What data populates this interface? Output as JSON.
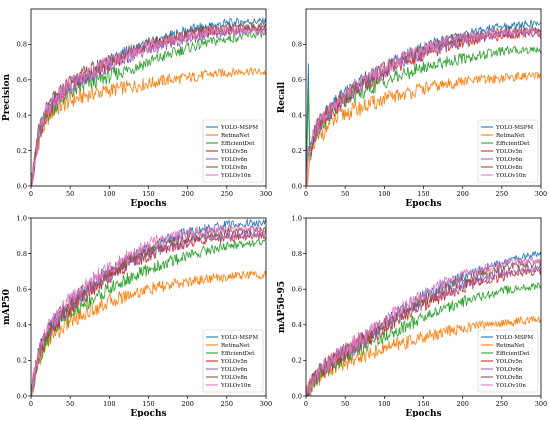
{
  "colors": {
    "YOLO-MSPM": "#1f77b4",
    "RetinaNet": "#ff7f0e",
    "EfficientDet": "#2ca02c",
    "YOLOv5n": "#d62728",
    "YOLOv6n": "#9467bd",
    "YOLOv8n": "#8c564b",
    "YOLOv10n": "#e377c2"
  },
  "chart_data": [
    {
      "type": "line",
      "xlabel": "Epochs",
      "ylabel": "Precision",
      "xlim": [
        0,
        300
      ],
      "ylim": [
        0,
        1.0
      ],
      "xticks": [
        0,
        50,
        100,
        150,
        200,
        250,
        300
      ],
      "yticks": [
        0.0,
        0.2,
        0.4,
        0.6,
        0.8
      ],
      "grid": false,
      "legend_position": "lower-right",
      "x": [
        0,
        5,
        10,
        20,
        30,
        50,
        75,
        100,
        125,
        150,
        175,
        200,
        225,
        250,
        275,
        300
      ],
      "series": [
        {
          "name": "YOLO-MSPM",
          "values": [
            0.0,
            0.15,
            0.3,
            0.42,
            0.48,
            0.58,
            0.64,
            0.7,
            0.76,
            0.8,
            0.84,
            0.88,
            0.9,
            0.92,
            0.93,
            0.93
          ]
        },
        {
          "name": "RetinaNet",
          "values": [
            0.0,
            0.12,
            0.25,
            0.38,
            0.43,
            0.48,
            0.52,
            0.54,
            0.56,
            0.58,
            0.6,
            0.61,
            0.63,
            0.64,
            0.65,
            0.64
          ]
        },
        {
          "name": "EfficientDet",
          "values": [
            0.0,
            0.14,
            0.28,
            0.4,
            0.45,
            0.53,
            0.58,
            0.62,
            0.66,
            0.7,
            0.74,
            0.78,
            0.81,
            0.83,
            0.85,
            0.86
          ]
        },
        {
          "name": "YOLOv5n",
          "values": [
            0.0,
            0.15,
            0.3,
            0.41,
            0.47,
            0.57,
            0.63,
            0.69,
            0.74,
            0.78,
            0.82,
            0.85,
            0.87,
            0.88,
            0.89,
            0.89
          ]
        },
        {
          "name": "YOLOv6n",
          "values": [
            0.0,
            0.14,
            0.29,
            0.41,
            0.47,
            0.56,
            0.62,
            0.68,
            0.73,
            0.77,
            0.8,
            0.83,
            0.85,
            0.87,
            0.88,
            0.88
          ]
        },
        {
          "name": "YOLOv8n",
          "values": [
            0.0,
            0.15,
            0.31,
            0.43,
            0.49,
            0.59,
            0.65,
            0.71,
            0.76,
            0.8,
            0.83,
            0.86,
            0.88,
            0.89,
            0.9,
            0.9
          ]
        },
        {
          "name": "YOLOv10n",
          "values": [
            0.0,
            0.15,
            0.3,
            0.42,
            0.48,
            0.58,
            0.64,
            0.7,
            0.75,
            0.79,
            0.82,
            0.85,
            0.87,
            0.88,
            0.88,
            0.87
          ]
        }
      ]
    },
    {
      "type": "line",
      "xlabel": "Epochs",
      "ylabel": "Recall",
      "xlim": [
        0,
        300
      ],
      "ylim": [
        0,
        1.0
      ],
      "xticks": [
        0,
        50,
        100,
        150,
        200,
        250,
        300
      ],
      "yticks": [
        0.0,
        0.2,
        0.4,
        0.6,
        0.8
      ],
      "grid": false,
      "legend_position": "lower-right",
      "x": [
        0,
        3,
        5,
        10,
        20,
        30,
        50,
        75,
        100,
        125,
        150,
        175,
        200,
        225,
        250,
        275,
        300
      ],
      "series": [
        {
          "name": "YOLO-MSPM",
          "values": [
            0.0,
            0.66,
            0.2,
            0.3,
            0.38,
            0.43,
            0.52,
            0.6,
            0.67,
            0.73,
            0.78,
            0.82,
            0.85,
            0.88,
            0.9,
            0.91,
            0.92
          ]
        },
        {
          "name": "RetinaNet",
          "values": [
            0.0,
            0.05,
            0.12,
            0.22,
            0.3,
            0.35,
            0.41,
            0.45,
            0.49,
            0.52,
            0.55,
            0.57,
            0.59,
            0.6,
            0.61,
            0.62,
            0.62
          ]
        },
        {
          "name": "EfficientDet",
          "values": [
            0.0,
            0.5,
            0.18,
            0.28,
            0.36,
            0.4,
            0.48,
            0.54,
            0.59,
            0.63,
            0.67,
            0.7,
            0.72,
            0.74,
            0.76,
            0.77,
            0.77
          ]
        },
        {
          "name": "YOLOv5n",
          "values": [
            0.0,
            0.2,
            0.19,
            0.29,
            0.37,
            0.42,
            0.5,
            0.58,
            0.64,
            0.7,
            0.74,
            0.78,
            0.81,
            0.83,
            0.85,
            0.86,
            0.86
          ]
        },
        {
          "name": "YOLOv6n",
          "values": [
            0.0,
            0.2,
            0.19,
            0.29,
            0.37,
            0.42,
            0.5,
            0.58,
            0.65,
            0.71,
            0.75,
            0.79,
            0.82,
            0.84,
            0.86,
            0.87,
            0.87
          ]
        },
        {
          "name": "YOLOv8n",
          "values": [
            0.0,
            0.2,
            0.2,
            0.3,
            0.38,
            0.43,
            0.51,
            0.59,
            0.66,
            0.72,
            0.77,
            0.81,
            0.84,
            0.86,
            0.87,
            0.88,
            0.88
          ]
        },
        {
          "name": "YOLOv10n",
          "values": [
            0.0,
            0.2,
            0.2,
            0.3,
            0.38,
            0.43,
            0.52,
            0.6,
            0.67,
            0.73,
            0.78,
            0.82,
            0.84,
            0.86,
            0.87,
            0.87,
            0.86
          ]
        }
      ]
    },
    {
      "type": "line",
      "xlabel": "Epochs",
      "ylabel": "mAP50",
      "xlim": [
        0,
        300
      ],
      "ylim": [
        0,
        1.0
      ],
      "xticks": [
        0,
        50,
        100,
        150,
        200,
        250,
        300
      ],
      "yticks": [
        0.0,
        0.2,
        0.4,
        0.6,
        0.8,
        1.0
      ],
      "grid": false,
      "legend_position": "lower-right",
      "x": [
        0,
        5,
        10,
        20,
        30,
        50,
        75,
        100,
        125,
        150,
        175,
        200,
        225,
        250,
        275,
        300
      ],
      "series": [
        {
          "name": "YOLO-MSPM",
          "values": [
            0.0,
            0.15,
            0.25,
            0.35,
            0.42,
            0.52,
            0.62,
            0.7,
            0.77,
            0.83,
            0.88,
            0.92,
            0.94,
            0.96,
            0.97,
            0.97
          ]
        },
        {
          "name": "RetinaNet",
          "values": [
            0.0,
            0.1,
            0.2,
            0.3,
            0.35,
            0.42,
            0.48,
            0.53,
            0.57,
            0.6,
            0.62,
            0.64,
            0.66,
            0.67,
            0.68,
            0.68
          ]
        },
        {
          "name": "EfficientDet",
          "values": [
            0.0,
            0.12,
            0.22,
            0.32,
            0.38,
            0.46,
            0.54,
            0.6,
            0.66,
            0.71,
            0.75,
            0.79,
            0.82,
            0.84,
            0.86,
            0.87
          ]
        },
        {
          "name": "YOLOv5n",
          "values": [
            0.0,
            0.14,
            0.24,
            0.34,
            0.4,
            0.5,
            0.59,
            0.67,
            0.74,
            0.79,
            0.83,
            0.86,
            0.88,
            0.89,
            0.9,
            0.9
          ]
        },
        {
          "name": "YOLOv6n",
          "values": [
            0.0,
            0.14,
            0.24,
            0.34,
            0.41,
            0.51,
            0.6,
            0.68,
            0.75,
            0.8,
            0.84,
            0.87,
            0.89,
            0.9,
            0.91,
            0.91
          ]
        },
        {
          "name": "YOLOv8n",
          "values": [
            0.0,
            0.15,
            0.25,
            0.35,
            0.42,
            0.52,
            0.61,
            0.69,
            0.76,
            0.82,
            0.86,
            0.89,
            0.91,
            0.92,
            0.93,
            0.93
          ]
        },
        {
          "name": "YOLOv10n",
          "values": [
            0.0,
            0.15,
            0.25,
            0.36,
            0.43,
            0.54,
            0.64,
            0.72,
            0.79,
            0.85,
            0.89,
            0.92,
            0.93,
            0.94,
            0.94,
            0.94
          ]
        }
      ]
    },
    {
      "type": "line",
      "xlabel": "Epochs",
      "ylabel": "mAP50-95",
      "xlim": [
        0,
        300
      ],
      "ylim": [
        0,
        1.0
      ],
      "xticks": [
        0,
        50,
        100,
        150,
        200,
        250,
        300
      ],
      "yticks": [
        0.0,
        0.2,
        0.4,
        0.6,
        0.8,
        1.0
      ],
      "grid": false,
      "legend_position": "lower-right",
      "x": [
        0,
        5,
        10,
        20,
        30,
        50,
        75,
        100,
        125,
        150,
        175,
        200,
        225,
        250,
        275,
        300
      ],
      "series": [
        {
          "name": "YOLO-MSPM",
          "values": [
            0.0,
            0.05,
            0.1,
            0.15,
            0.19,
            0.25,
            0.33,
            0.41,
            0.49,
            0.56,
            0.62,
            0.67,
            0.71,
            0.75,
            0.78,
            0.8
          ]
        },
        {
          "name": "RetinaNet",
          "values": [
            0.0,
            0.04,
            0.08,
            0.12,
            0.15,
            0.19,
            0.23,
            0.27,
            0.3,
            0.33,
            0.36,
            0.38,
            0.4,
            0.41,
            0.42,
            0.43
          ]
        },
        {
          "name": "EfficientDet",
          "values": [
            0.0,
            0.04,
            0.09,
            0.13,
            0.16,
            0.22,
            0.28,
            0.34,
            0.39,
            0.44,
            0.49,
            0.53,
            0.56,
            0.59,
            0.61,
            0.62
          ]
        },
        {
          "name": "YOLOv5n",
          "values": [
            0.0,
            0.05,
            0.1,
            0.14,
            0.18,
            0.24,
            0.31,
            0.38,
            0.45,
            0.51,
            0.56,
            0.61,
            0.64,
            0.67,
            0.69,
            0.7
          ]
        },
        {
          "name": "YOLOv6n",
          "values": [
            0.0,
            0.05,
            0.1,
            0.14,
            0.18,
            0.24,
            0.31,
            0.39,
            0.46,
            0.52,
            0.58,
            0.62,
            0.66,
            0.69,
            0.71,
            0.72
          ]
        },
        {
          "name": "YOLOv8n",
          "values": [
            0.0,
            0.05,
            0.1,
            0.15,
            0.19,
            0.25,
            0.33,
            0.4,
            0.47,
            0.54,
            0.6,
            0.65,
            0.69,
            0.72,
            0.74,
            0.75
          ]
        },
        {
          "name": "YOLOv10n",
          "values": [
            0.0,
            0.05,
            0.1,
            0.15,
            0.19,
            0.26,
            0.34,
            0.42,
            0.5,
            0.57,
            0.63,
            0.68,
            0.71,
            0.74,
            0.76,
            0.76
          ]
        }
      ]
    }
  ]
}
